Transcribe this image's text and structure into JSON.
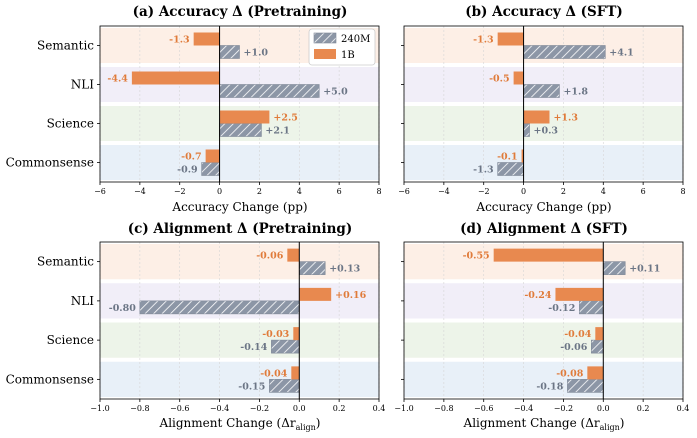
{
  "legend": {
    "series": [
      "240M",
      "1B"
    ]
  },
  "colors": {
    "s240m_fill": "#8c96a6",
    "s240m_hatch": "#ffffff",
    "s1b": "#e8894f",
    "label_240m": "#6b7585",
    "label_1b": "#e07b3a",
    "band_semantic": "#fdefe6",
    "band_nli": "#f1eef8",
    "band_science": "#edf4e9",
    "band_commonsense": "#e8f0f8"
  },
  "chart_data": [
    {
      "id": "a",
      "type": "bar",
      "orientation": "horizontal",
      "title": "(a) Accuracy Δ (Pretraining)",
      "xlabel": "Accuracy Change (pp)",
      "xlim": [
        -6,
        8
      ],
      "xticks": [
        -6,
        -4,
        -2,
        0,
        2,
        4,
        6,
        8
      ],
      "xtick_labels": [
        "−6",
        "−4",
        "−2",
        "0",
        "2",
        "4",
        "6",
        "8"
      ],
      "categories": [
        "Semantic",
        "NLI",
        "Science",
        "Commonsense"
      ],
      "show_category_labels": true,
      "series": [
        {
          "name": "240M",
          "values": [
            1.0,
            5.0,
            2.1,
            -0.9
          ],
          "labels": [
            "+1.0",
            "+5.0",
            "+2.1",
            "-0.9"
          ]
        },
        {
          "name": "1B",
          "values": [
            -1.3,
            -4.4,
            2.5,
            -0.7
          ],
          "labels": [
            "-1.3",
            "-4.4",
            "+2.5",
            "-0.7"
          ]
        }
      ]
    },
    {
      "id": "b",
      "type": "bar",
      "orientation": "horizontal",
      "title": "(b) Accuracy Δ (SFT)",
      "xlabel": "Accuracy Change (pp)",
      "xlim": [
        -6,
        8
      ],
      "xticks": [
        -6,
        -4,
        -2,
        0,
        2,
        4,
        6,
        8
      ],
      "xtick_labels": [
        "−6",
        "−4",
        "−2",
        "0",
        "2",
        "4",
        "6",
        "8"
      ],
      "categories": [
        "Semantic",
        "NLI",
        "Science",
        "Commonsense"
      ],
      "show_category_labels": false,
      "series": [
        {
          "name": "240M",
          "values": [
            4.1,
            1.8,
            0.3,
            -1.3
          ],
          "labels": [
            "+4.1",
            "+1.8",
            "+0.3",
            "-1.3"
          ]
        },
        {
          "name": "1B",
          "values": [
            -1.3,
            -0.5,
            1.3,
            -0.1
          ],
          "labels": [
            "-1.3",
            "-0.5",
            "+1.3",
            "-0.1"
          ]
        }
      ]
    },
    {
      "id": "c",
      "type": "bar",
      "orientation": "horizontal",
      "title": "(c) Alignment Δ (Pretraining)",
      "xlabel": "Alignment Change (Δr",
      "xlabel_sub": "align",
      "xlabel_end": ")",
      "xlim": [
        -1.0,
        0.4
      ],
      "xticks": [
        -1.0,
        -0.8,
        -0.6,
        -0.4,
        -0.2,
        0.0,
        0.2,
        0.4
      ],
      "xtick_labels": [
        "−1.0",
        "−0.8",
        "−0.6",
        "−0.4",
        "−0.2",
        "0.0",
        "0.2",
        "0.4"
      ],
      "categories": [
        "Semantic",
        "NLI",
        "Science",
        "Commonsense"
      ],
      "show_category_labels": true,
      "series": [
        {
          "name": "240M",
          "values": [
            0.13,
            -0.8,
            -0.14,
            -0.15
          ],
          "labels": [
            "+0.13",
            "-0.80",
            "-0.14",
            "-0.15"
          ]
        },
        {
          "name": "1B",
          "values": [
            -0.06,
            0.16,
            -0.03,
            -0.04
          ],
          "labels": [
            "-0.06",
            "+0.16",
            "-0.03",
            "-0.04"
          ]
        }
      ]
    },
    {
      "id": "d",
      "type": "bar",
      "orientation": "horizontal",
      "title": "(d) Alignment Δ (SFT)",
      "xlabel": "Alignment Change (Δr",
      "xlabel_sub": "align",
      "xlabel_end": ")",
      "xlim": [
        -1.0,
        0.4
      ],
      "xticks": [
        -1.0,
        -0.8,
        -0.6,
        -0.4,
        -0.2,
        0.0,
        0.2,
        0.4
      ],
      "xtick_labels": [
        "−1.0",
        "−0.8",
        "−0.6",
        "−0.4",
        "−0.2",
        "0.0",
        "0.2",
        "0.4"
      ],
      "categories": [
        "Semantic",
        "NLI",
        "Science",
        "Commonsense"
      ],
      "show_category_labels": false,
      "series": [
        {
          "name": "240M",
          "values": [
            0.11,
            -0.12,
            -0.06,
            -0.18
          ],
          "labels": [
            "+0.11",
            "-0.12",
            "-0.06",
            "-0.18"
          ]
        },
        {
          "name": "1B",
          "values": [
            -0.55,
            -0.24,
            -0.04,
            -0.08
          ],
          "labels": [
            "-0.55",
            "-0.24",
            "-0.04",
            "-0.08"
          ]
        }
      ]
    }
  ]
}
